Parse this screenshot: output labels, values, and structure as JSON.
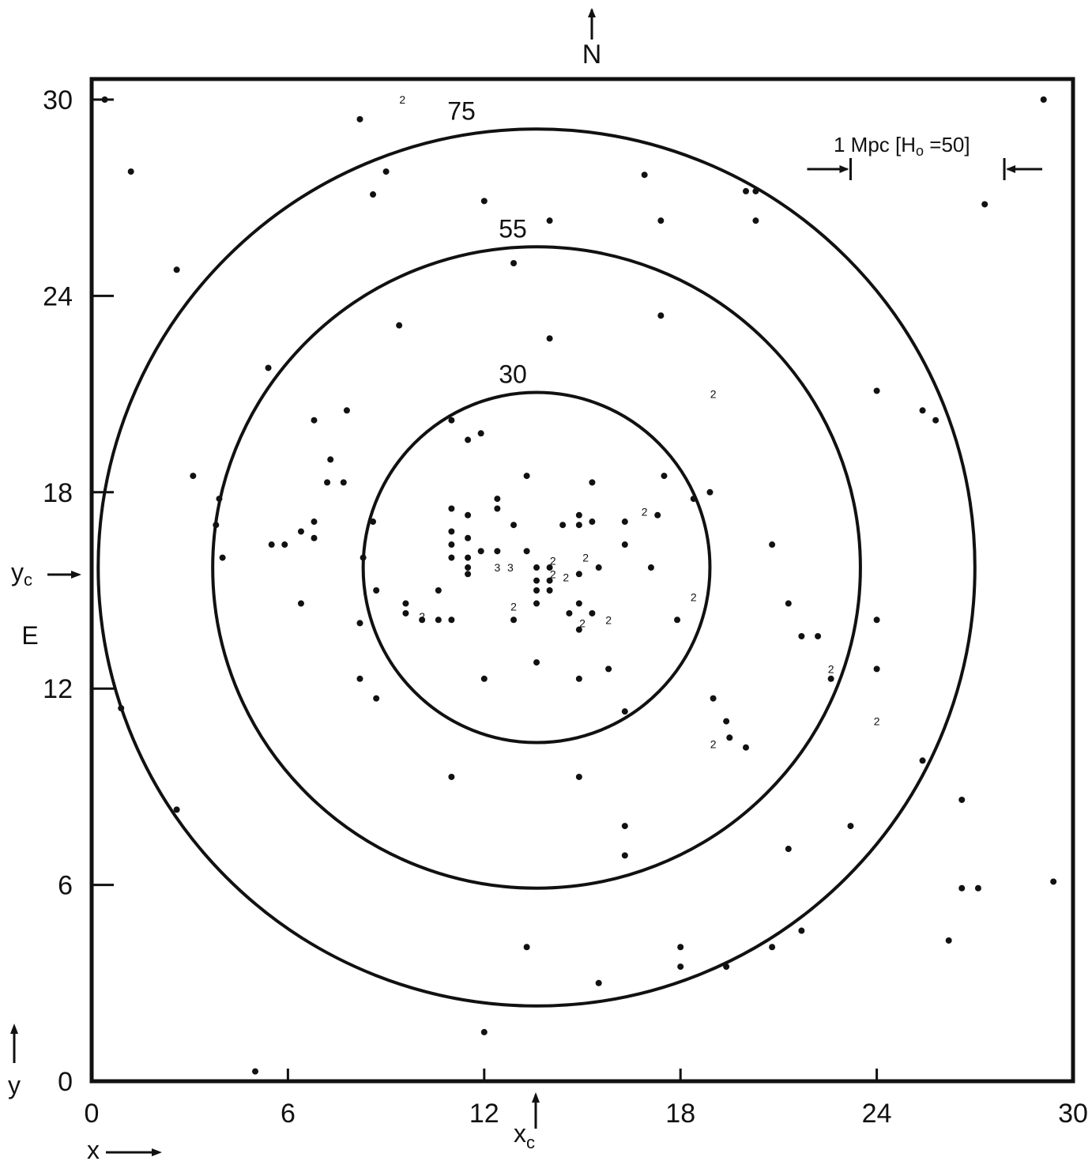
{
  "chart_data": {
    "type": "scatter",
    "title": "",
    "xlabel": "x",
    "ylabel": "y",
    "xlim": [
      0,
      30
    ],
    "ylim": [
      0,
      31
    ],
    "x_ticks": [
      0,
      6,
      12,
      18,
      24,
      30
    ],
    "y_ticks": [
      0,
      6,
      12,
      18,
      24,
      30
    ],
    "x_tick_labels": [
      "0",
      "6",
      "12",
      "18",
      "24",
      "30"
    ],
    "y_tick_labels": [
      "0",
      "6",
      "12",
      "18",
      "24",
      "30"
    ],
    "grid": false,
    "legend": "none",
    "annotations": {
      "north": "N",
      "east": "E",
      "xc_label": "x",
      "xc_sub": "c",
      "yc_label": "y",
      "yc_sub": "c",
      "scale_bar": "1 Mpc [H",
      "scale_bar_sub": "o",
      "scale_bar_end": " =50]"
    },
    "center": {
      "x": 13.6,
      "y": 15.7
    },
    "circles": [
      {
        "label": "30",
        "radius_x": 5.3,
        "radius_y": 5.35
      },
      {
        "label": "55",
        "radius_x": 9.9,
        "radius_y": 9.8
      },
      {
        "label": "75",
        "radius_x": 13.4,
        "radius_y": 13.4
      }
    ],
    "scale_bar_range": [
      23.2,
      27.9
    ],
    "points": [
      [
        0.4,
        30.0
      ],
      [
        1.2,
        27.8
      ],
      [
        2.6,
        24.8
      ],
      [
        3.1,
        18.5
      ],
      [
        3.9,
        17.8
      ],
      [
        3.8,
        17.0
      ],
      [
        4.0,
        16.0
      ],
      [
        5.4,
        21.8
      ],
      [
        5.5,
        16.4
      ],
      [
        5.9,
        16.4
      ],
      [
        6.4,
        14.6
      ],
      [
        6.4,
        16.8
      ],
      [
        6.8,
        16.6
      ],
      [
        6.8,
        17.1
      ],
      [
        6.8,
        20.2
      ],
      [
        7.2,
        18.3
      ],
      [
        7.3,
        19.0
      ],
      [
        7.7,
        18.3
      ],
      [
        7.8,
        20.5
      ],
      [
        8.2,
        14.0
      ],
      [
        8.2,
        12.3
      ],
      [
        8.7,
        11.7
      ],
      [
        8.3,
        16.0
      ],
      [
        8.6,
        17.1
      ],
      [
        8.7,
        15.0
      ],
      [
        8.2,
        29.4
      ],
      [
        8.6,
        27.1
      ],
      [
        9.0,
        27.8
      ],
      [
        9.4,
        23.1
      ],
      [
        9.6,
        14.6
      ],
      [
        9.6,
        14.3
      ],
      [
        10.1,
        14.1
      ],
      [
        10.6,
        15.0
      ],
      [
        10.6,
        14.1
      ],
      [
        11.0,
        14.1
      ],
      [
        11.0,
        17.5
      ],
      [
        11.0,
        16.8
      ],
      [
        11.0,
        16.4
      ],
      [
        11.0,
        16.0
      ],
      [
        11.0,
        20.2
      ],
      [
        11.0,
        9.3
      ],
      [
        11.5,
        17.3
      ],
      [
        11.5,
        16.6
      ],
      [
        11.5,
        16.0
      ],
      [
        11.5,
        15.7
      ],
      [
        11.5,
        15.5
      ],
      [
        11.5,
        19.6
      ],
      [
        11.9,
        19.8
      ],
      [
        11.9,
        16.2
      ],
      [
        12.0,
        12.3
      ],
      [
        12.0,
        26.9
      ],
      [
        12.4,
        16.2
      ],
      [
        12.4,
        17.5
      ],
      [
        12.4,
        17.8
      ],
      [
        12.9,
        17.0
      ],
      [
        12.9,
        14.1
      ],
      [
        12.9,
        25.0
      ],
      [
        13.3,
        16.2
      ],
      [
        13.3,
        18.5
      ],
      [
        13.6,
        15.7
      ],
      [
        13.6,
        15.3
      ],
      [
        13.6,
        15.0
      ],
      [
        13.6,
        14.6
      ],
      [
        13.6,
        12.8
      ],
      [
        13.3,
        4.1
      ],
      [
        14.0,
        15.7
      ],
      [
        14.0,
        15.3
      ],
      [
        14.0,
        15.0
      ],
      [
        14.0,
        22.7
      ],
      [
        14.0,
        26.3
      ],
      [
        14.4,
        17.0
      ],
      [
        14.6,
        14.3
      ],
      [
        14.9,
        17.3
      ],
      [
        14.9,
        17.0
      ],
      [
        14.9,
        15.5
      ],
      [
        14.9,
        14.6
      ],
      [
        14.9,
        13.8
      ],
      [
        14.9,
        12.3
      ],
      [
        14.9,
        9.3
      ],
      [
        15.3,
        17.1
      ],
      [
        15.3,
        18.3
      ],
      [
        15.3,
        14.3
      ],
      [
        15.5,
        15.7
      ],
      [
        15.8,
        12.6
      ],
      [
        16.3,
        17.1
      ],
      [
        16.3,
        16.4
      ],
      [
        16.3,
        11.3
      ],
      [
        16.3,
        7.8
      ],
      [
        16.3,
        6.9
      ],
      [
        16.9,
        27.7
      ],
      [
        17.1,
        15.7
      ],
      [
        17.3,
        17.3
      ],
      [
        17.5,
        18.5
      ],
      [
        17.4,
        23.4
      ],
      [
        17.4,
        26.3
      ],
      [
        17.9,
        14.1
      ],
      [
        18.0,
        4.1
      ],
      [
        18.0,
        3.5
      ],
      [
        18.4,
        17.8
      ],
      [
        18.9,
        18.0
      ],
      [
        19.0,
        11.7
      ],
      [
        19.4,
        11.0
      ],
      [
        19.5,
        10.5
      ],
      [
        19.4,
        3.5
      ],
      [
        20.0,
        10.2
      ],
      [
        20.0,
        27.2
      ],
      [
        20.3,
        27.2
      ],
      [
        20.3,
        26.3
      ],
      [
        20.8,
        16.4
      ],
      [
        20.8,
        4.1
      ],
      [
        21.3,
        14.6
      ],
      [
        21.3,
        7.1
      ],
      [
        21.7,
        13.6
      ],
      [
        21.7,
        4.6
      ],
      [
        22.2,
        13.6
      ],
      [
        22.6,
        12.3
      ],
      [
        23.2,
        7.8
      ],
      [
        24.0,
        21.1
      ],
      [
        24.0,
        14.1
      ],
      [
        24.0,
        12.6
      ],
      [
        25.4,
        20.5
      ],
      [
        25.4,
        9.8
      ],
      [
        25.8,
        20.2
      ],
      [
        26.2,
        4.3
      ],
      [
        26.6,
        8.6
      ],
      [
        26.6,
        5.9
      ],
      [
        27.1,
        5.9
      ],
      [
        27.3,
        26.8
      ],
      [
        29.4,
        6.1
      ],
      [
        29.1,
        30.0
      ],
      [
        5.0,
        0.3
      ],
      [
        12.0,
        1.5
      ],
      [
        15.5,
        3.0
      ],
      [
        2.6,
        8.3
      ],
      [
        0.9,
        11.4
      ]
    ],
    "doubles": [
      [
        10.1,
        14.2
      ],
      [
        12.9,
        14.5
      ],
      [
        14.1,
        15.9
      ],
      [
        14.1,
        15.5
      ],
      [
        14.5,
        15.4
      ],
      [
        15.0,
        14.0
      ],
      [
        15.1,
        16.0
      ],
      [
        15.8,
        14.1
      ],
      [
        16.9,
        17.4
      ],
      [
        18.4,
        14.8
      ],
      [
        19.0,
        21.0
      ],
      [
        19.0,
        10.3
      ],
      [
        22.6,
        12.6
      ],
      [
        24.0,
        11.0
      ],
      [
        9.5,
        30.0
      ]
    ],
    "triples": [
      [
        12.4,
        15.7
      ],
      [
        12.8,
        15.7
      ]
    ]
  }
}
